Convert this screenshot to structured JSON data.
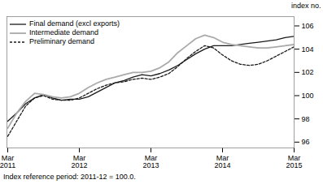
{
  "chart_data": {
    "type": "line",
    "ylabel": "index no.",
    "caption": "Index reference period: 2011-12 = 100.0.",
    "categories": [
      "Mar\n2011",
      null,
      null,
      null,
      null,
      null,
      null,
      null,
      "Mar\n2012",
      null,
      null,
      null,
      null,
      null,
      null,
      null,
      "Mar\n2013",
      null,
      null,
      null,
      null,
      null,
      null,
      null,
      "Mar\n2014",
      null,
      null,
      null,
      null,
      null,
      null,
      null,
      "Mar\n2015"
    ],
    "ylim": [
      95.5,
      106.8
    ],
    "yticks": [
      96,
      98,
      100,
      102,
      104,
      106
    ],
    "grid": false,
    "legend": "upper left",
    "series": [
      {
        "name": "Final demand (excl exports)",
        "color": "#1a1a1a",
        "line_style": "solid",
        "values": [
          97.8,
          98.5,
          99.3,
          99.8,
          100.1,
          99.8,
          99.6,
          99.7,
          99.7,
          99.9,
          100.3,
          100.7,
          101.1,
          101.3,
          101.6,
          101.8,
          101.7,
          101.9,
          102.2,
          102.6,
          103.1,
          103.6,
          104.0,
          104.3,
          104.3,
          104.3,
          104.4,
          104.5,
          104.6,
          104.7,
          104.8,
          105.0,
          105.1
        ]
      },
      {
        "name": "Intermediate demand",
        "color": "#aaaaaa",
        "line_style": "solid",
        "values": [
          97.2,
          98.5,
          99.5,
          100.2,
          100.1,
          99.9,
          99.8,
          99.9,
          100.2,
          100.7,
          101.1,
          101.4,
          101.6,
          101.8,
          102.0,
          102.0,
          102.1,
          102.4,
          102.9,
          103.7,
          104.3,
          104.9,
          105.2,
          105.0,
          104.6,
          104.4,
          104.3,
          104.2,
          104.1,
          104.1,
          104.2,
          104.3,
          104.4
        ]
      },
      {
        "name": "Preliminary demand",
        "color": "#1a1a1a",
        "line_style": "dashed",
        "values": [
          96.5,
          97.8,
          99.1,
          99.8,
          100.0,
          99.7,
          99.6,
          99.6,
          99.8,
          100.2,
          100.6,
          100.9,
          101.1,
          101.2,
          101.4,
          101.5,
          101.4,
          101.6,
          101.9,
          102.5,
          103.2,
          103.8,
          104.3,
          104.1,
          103.5,
          103.0,
          102.7,
          102.6,
          102.7,
          103.0,
          103.4,
          103.8,
          104.2
        ]
      }
    ]
  }
}
